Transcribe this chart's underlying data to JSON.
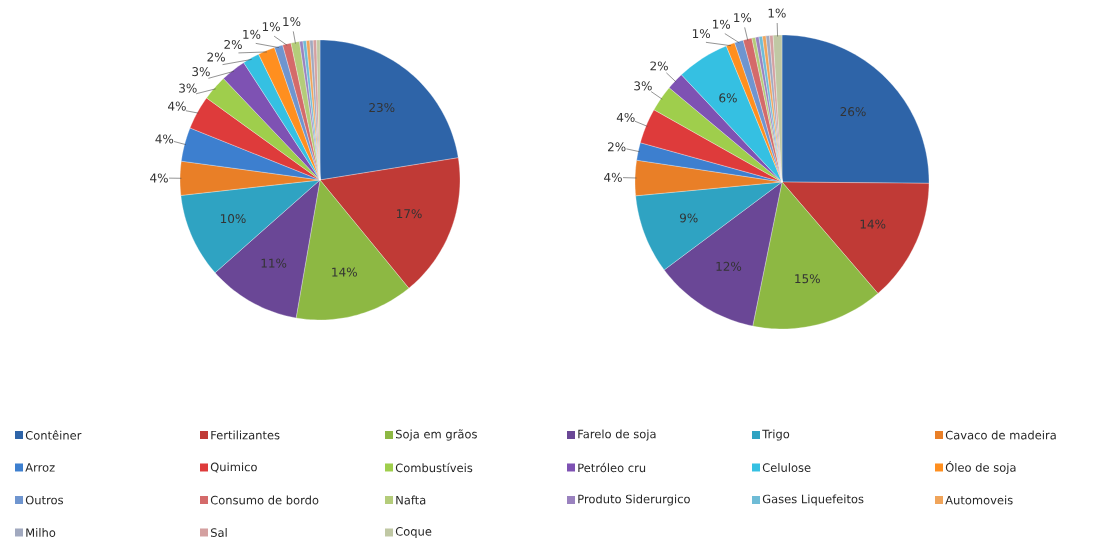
{
  "chart_data": [
    {
      "type": "pie",
      "legend": "bottom",
      "categories": [
        "Contêiner",
        "Fertilizantes",
        "Soja em grãos",
        "Farelo de soja",
        "Trigo",
        "Cavaco de madeira",
        "Arroz",
        "Quimico",
        "Combustíveis",
        "Petróleo cru",
        "Celulose",
        "Óleo de soja",
        "Outros",
        "Consumo de bordo",
        "Nafta",
        "Produto Siderurgico",
        "Gases Liquefeitos",
        "Automoveis",
        "Milho",
        "Sal",
        "Coque"
      ],
      "values": [
        23,
        17,
        14,
        11,
        10,
        4,
        4,
        4,
        3,
        3,
        2,
        2,
        1,
        1,
        1,
        0.4,
        0.4,
        0.4,
        0.4,
        0.4,
        0.4
      ],
      "value_labels": [
        "23%",
        "17%",
        "14%",
        "11%",
        "10%",
        "4%",
        "4%",
        "4%",
        "3%",
        "3%",
        "2%",
        "2%",
        "1%",
        "1%",
        "1%",
        null,
        null,
        null,
        null,
        null,
        null
      ],
      "colors": [
        "#2e64a8",
        "#c03a36",
        "#8db843",
        "#6a4796",
        "#2fa3c2",
        "#e97f27",
        "#3d7fcf",
        "#de3b3b",
        "#9fce4c",
        "#7e52b3",
        "#35c0e2",
        "#ff8f1f",
        "#6f95cf",
        "#d46a6a",
        "#b4cc7a",
        "#9a82bf",
        "#6fbcd6",
        "#f0a45a",
        "#a1a9bf",
        "#d4a0a0",
        "#c0c8a4"
      ]
    },
    {
      "type": "pie",
      "values": [
        26,
        14,
        15,
        12,
        9,
        4,
        2,
        4,
        3,
        2,
        6,
        1,
        1,
        1,
        0.4,
        0.4,
        0.4,
        0.4,
        0.4,
        0.4,
        1
      ],
      "value_labels": [
        "26%",
        "14%",
        "15%",
        "12%",
        "9%",
        "4%",
        "2%",
        "4%",
        "3%",
        "2%",
        "6%",
        "1%",
        "1%",
        "1%",
        null,
        null,
        null,
        null,
        null,
        null,
        "1%"
      ],
      "colors": [
        "#2e64a8",
        "#c03a36",
        "#8db843",
        "#6a4796",
        "#2fa3c2",
        "#e97f27",
        "#3d7fcf",
        "#de3b3b",
        "#9fce4c",
        "#7e52b3",
        "#35c0e2",
        "#ff8f1f",
        "#6f95cf",
        "#d46a6a",
        "#b4cc7a",
        "#9a82bf",
        "#6fbcd6",
        "#f0a45a",
        "#a1a9bf",
        "#d4a0a0",
        "#c0c8a4"
      ]
    }
  ]
}
